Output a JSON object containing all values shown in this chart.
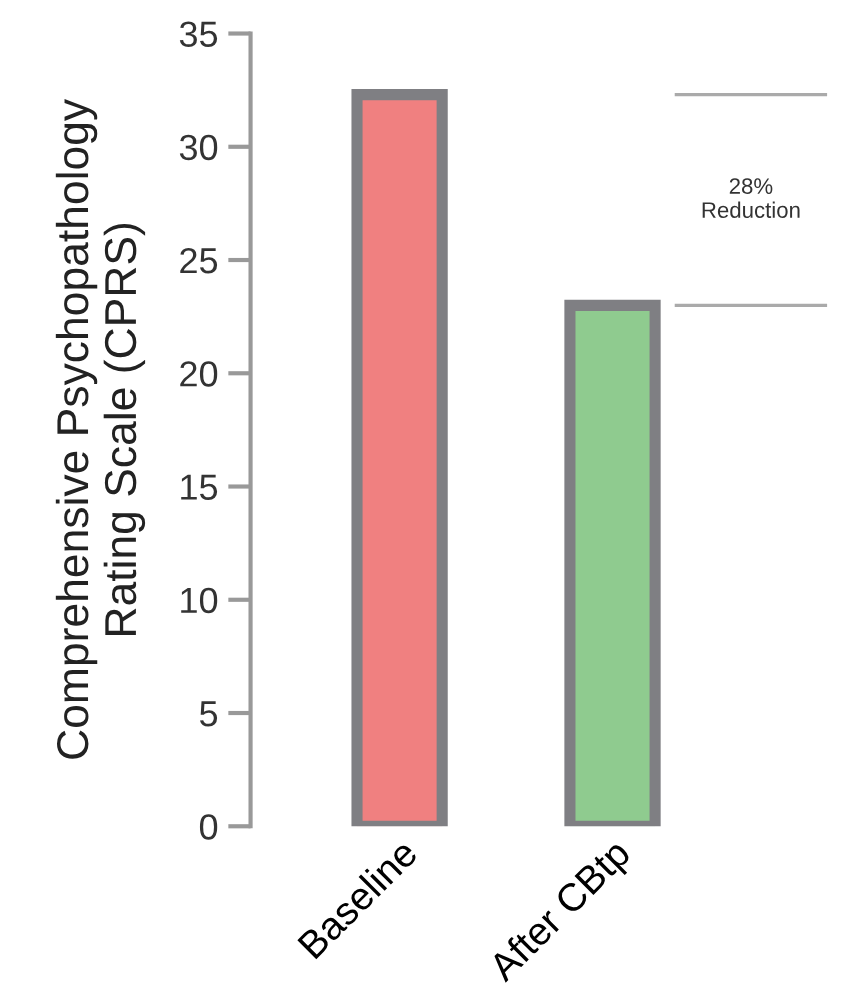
{
  "chart_data": {
    "type": "bar",
    "ylabel": "Comprehensive Psychopathology\nRating Scale (CPRS)",
    "categories": [
      "Baseline",
      "After CBtp"
    ],
    "values": [
      32.3,
      23.0
    ],
    "colors": [
      "#f08080",
      "#8fcb8f"
    ],
    "ylim": [
      0,
      35
    ],
    "yticks": [
      0,
      5,
      10,
      15,
      20,
      25,
      30,
      35
    ],
    "grid": false,
    "annotations": [
      "28%\nReduction"
    ]
  }
}
